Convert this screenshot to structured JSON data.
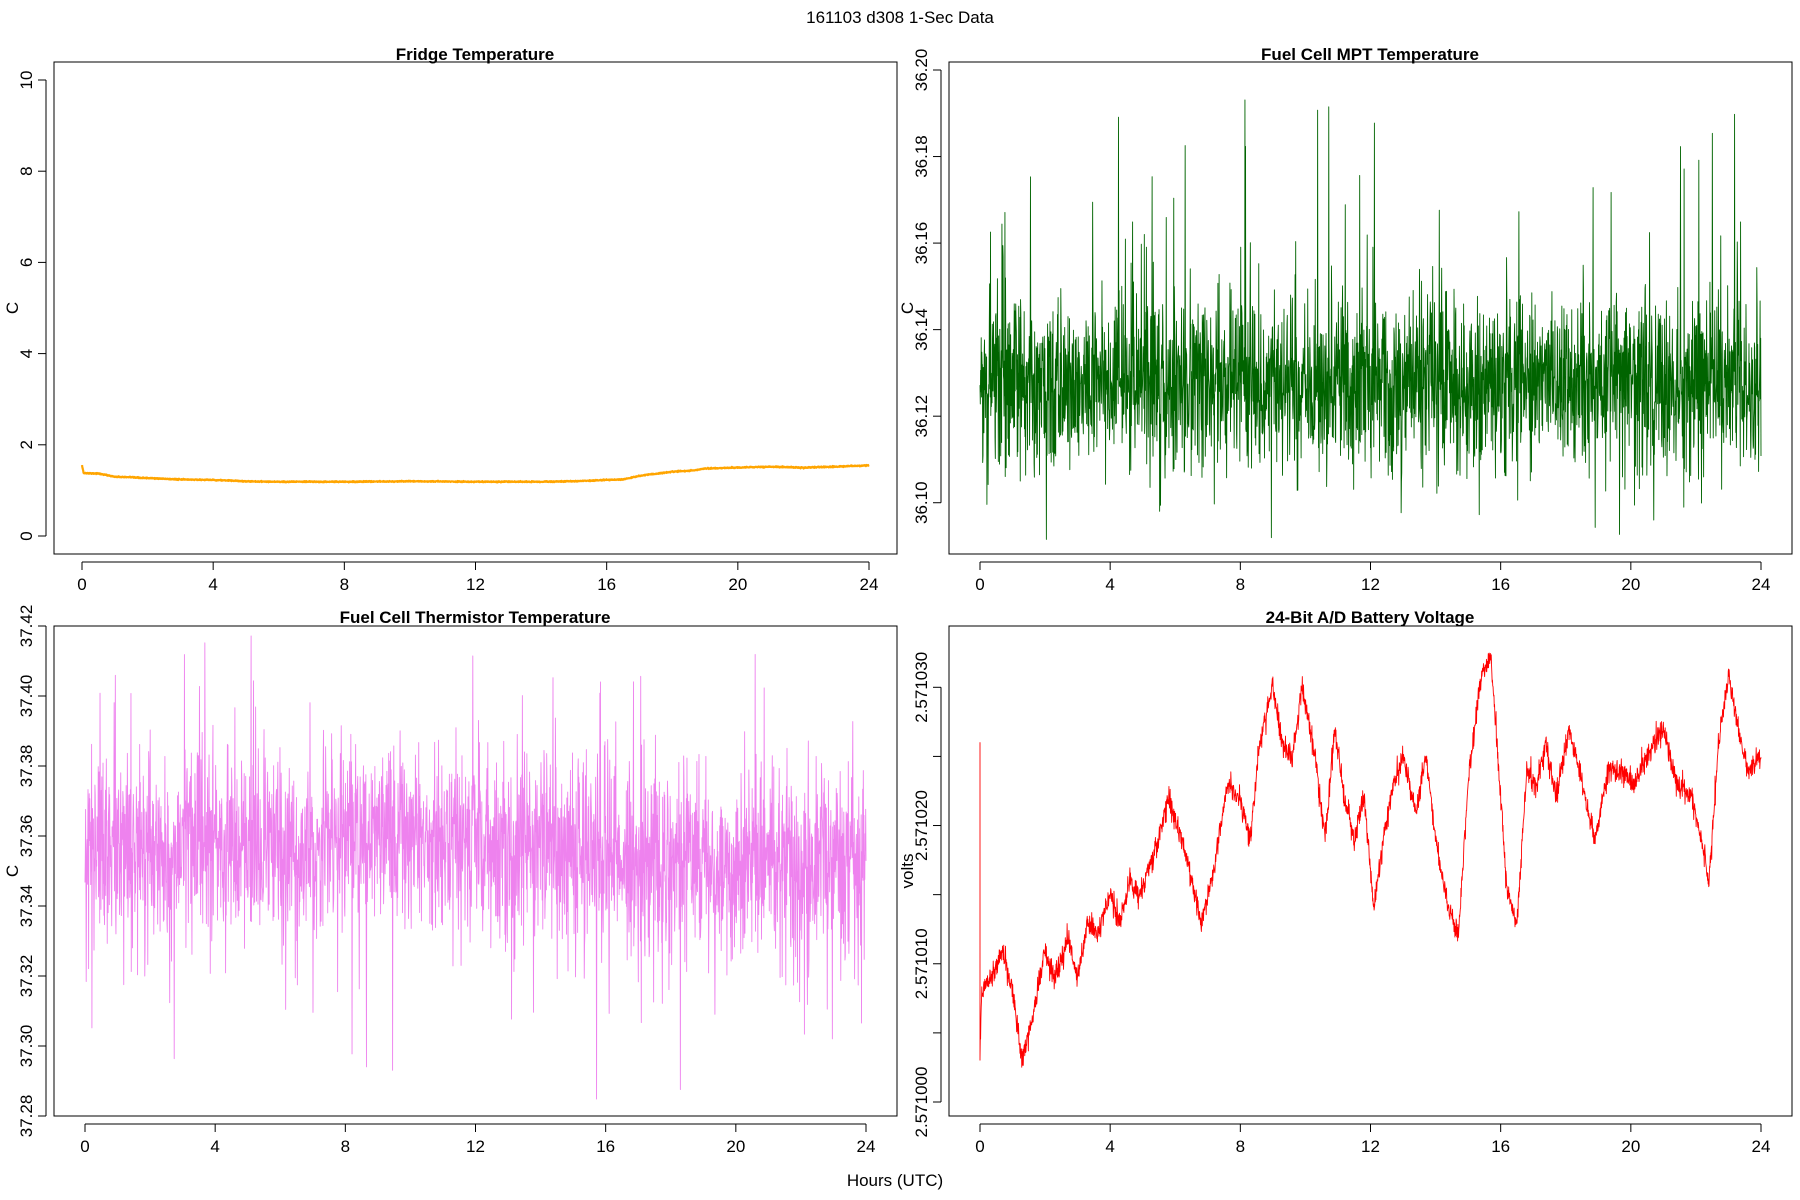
{
  "figure": {
    "supertitle": "161103   d308   1-Sec Data",
    "xlabel": "Hours (UTC)"
  },
  "chart_data": [
    {
      "type": "line",
      "title": "Fridge Temperature",
      "ylabel": "C",
      "xlabel": "",
      "color": "#FFA500",
      "xlim": [
        0,
        24
      ],
      "ylim": [
        0,
        10
      ],
      "xticks": [
        0,
        4,
        8,
        12,
        16,
        20,
        24
      ],
      "xtick_labels": [
        "0",
        "4",
        "8",
        "12",
        "16",
        "20",
        "24"
      ],
      "yticks": [
        0,
        2,
        4,
        6,
        8,
        10
      ],
      "ytick_labels": [
        "0",
        "2",
        "4",
        "6",
        "8",
        "10"
      ],
      "series": [
        {
          "name": "Fridge Temperature",
          "x": [
            0,
            0.05,
            0.5,
            1,
            2,
            3,
            4,
            5,
            6,
            8,
            10,
            12,
            14,
            15,
            16,
            16.5,
            17,
            18,
            18.7,
            19,
            20,
            21,
            22,
            23,
            24
          ],
          "y": [
            1.55,
            1.38,
            1.37,
            1.3,
            1.27,
            1.24,
            1.23,
            1.2,
            1.19,
            1.19,
            1.2,
            1.19,
            1.19,
            1.2,
            1.23,
            1.24,
            1.32,
            1.41,
            1.44,
            1.48,
            1.5,
            1.52,
            1.5,
            1.52,
            1.55
          ],
          "noise": 0.01
        }
      ]
    },
    {
      "type": "line",
      "title": "Fuel Cell MPT Temperature",
      "ylabel": "C",
      "xlabel": "",
      "color": "#006400",
      "xlim": [
        0,
        24
      ],
      "ylim": [
        36.09,
        36.2
      ],
      "xticks": [
        0,
        4,
        8,
        12,
        16,
        20,
        24
      ],
      "xtick_labels": [
        "0",
        "4",
        "8",
        "12",
        "16",
        "20",
        "24"
      ],
      "yticks": [
        36.1,
        36.12,
        36.14,
        36.16,
        36.18,
        36.2
      ],
      "ytick_labels": [
        "36.10",
        "36.12",
        "36.14",
        "36.16",
        "36.18",
        "36.20"
      ],
      "series": [
        {
          "name": "Fuel Cell MPT Temperature",
          "x": [
            0,
            24
          ],
          "y": [
            36.128,
            36.128
          ],
          "noise": 0.018,
          "min": 36.091,
          "max": 36.197
        }
      ]
    },
    {
      "type": "line",
      "title": "Fuel Cell Thermistor Temperature",
      "ylabel": "C",
      "xlabel": "",
      "color": "#EE82EE",
      "xlim": [
        0,
        24
      ],
      "ylim": [
        37.28,
        37.42
      ],
      "xticks": [
        0,
        4,
        8,
        12,
        16,
        20,
        24
      ],
      "xtick_labels": [
        "0",
        "4",
        "8",
        "12",
        "16",
        "20",
        "24"
      ],
      "yticks": [
        37.28,
        37.3,
        37.32,
        37.34,
        37.36,
        37.38,
        37.4,
        37.42
      ],
      "ytick_labels": [
        "37.28",
        "37.30",
        "37.32",
        "37.34",
        "37.36",
        "37.38",
        "37.40",
        "37.42"
      ],
      "series": [
        {
          "name": "Fuel Cell Thermistor Temperature",
          "x": [
            0,
            6,
            12,
            18,
            24
          ],
          "y": [
            37.356,
            37.358,
            37.358,
            37.353,
            37.351
          ],
          "noise": 0.024,
          "min": 37.281,
          "max": 37.418
        }
      ]
    },
    {
      "type": "line",
      "title": "24-Bit A/D Battery Voltage",
      "ylabel": "volts",
      "xlabel": "",
      "color": "#FF0000",
      "xlim": [
        0,
        24
      ],
      "ylim": [
        2.571,
        2.571034
      ],
      "xticks": [
        0,
        4,
        8,
        12,
        16,
        20,
        24
      ],
      "xtick_labels": [
        "0",
        "4",
        "8",
        "12",
        "16",
        "20",
        "24"
      ],
      "yticks": [
        2.571,
        2.571005,
        2.57101,
        2.571015,
        2.57102,
        2.571025,
        2.57103
      ],
      "ytick_labels": [
        "2.571000",
        "",
        "2.571010",
        "",
        "2.571020",
        "",
        "2.571030"
      ],
      "series": [
        {
          "name": "24-Bit A/D Battery Voltage",
          "x": [
            0,
            0.05,
            0.3,
            0.7,
            1.0,
            1.3,
            1.6,
            2.0,
            2.3,
            2.7,
            3.0,
            3.3,
            3.6,
            4.0,
            4.3,
            4.6,
            4.9,
            5.2,
            5.5,
            5.8,
            6.2,
            6.5,
            6.8,
            7.2,
            7.6,
            8.0,
            8.3,
            8.6,
            9.0,
            9.3,
            9.6,
            9.9,
            10.3,
            10.6,
            10.9,
            11.2,
            11.5,
            11.8,
            12.1,
            12.4,
            12.7,
            13.0,
            13.4,
            13.7,
            14.0,
            14.4,
            14.7,
            15.0,
            15.4,
            15.7,
            16.0,
            16.2,
            16.5,
            16.8,
            17.1,
            17.4,
            17.7,
            18.1,
            18.5,
            18.9,
            19.3,
            19.7,
            20.1,
            20.5,
            21.0,
            21.4,
            21.9,
            22.4,
            22.7,
            23.0,
            23.3,
            23.6,
            24.0
          ],
          "y": [
            2.571003,
            2.571008,
            2.571009,
            2.571011,
            2.571008,
            2.571003,
            2.571006,
            2.571011,
            2.571009,
            2.571012,
            2.571009,
            2.571013,
            2.571012,
            2.571015,
            2.571013,
            2.571016,
            2.571015,
            2.571017,
            2.571019,
            2.571022,
            2.571019,
            2.571016,
            2.571013,
            2.571017,
            2.571023,
            2.571022,
            2.571019,
            2.571026,
            2.57103,
            2.571026,
            2.571025,
            2.57103,
            2.571025,
            2.571019,
            2.571027,
            2.571022,
            2.571019,
            2.571022,
            2.571014,
            2.571019,
            2.571023,
            2.571025,
            2.571021,
            2.571025,
            2.571019,
            2.571014,
            2.571012,
            2.571023,
            2.571031,
            2.571032,
            2.571022,
            2.571015,
            2.571013,
            2.571024,
            2.571023,
            2.571026,
            2.571022,
            2.571027,
            2.571023,
            2.571019,
            2.571024,
            2.571024,
            2.571023,
            2.571025,
            2.571027,
            2.571023,
            2.571022,
            2.571016,
            2.571026,
            2.571031,
            2.571027,
            2.571024,
            2.571025
          ],
          "noise": 8e-07,
          "spike": {
            "x": 0.02,
            "y": 2.571026
          }
        }
      ]
    }
  ]
}
